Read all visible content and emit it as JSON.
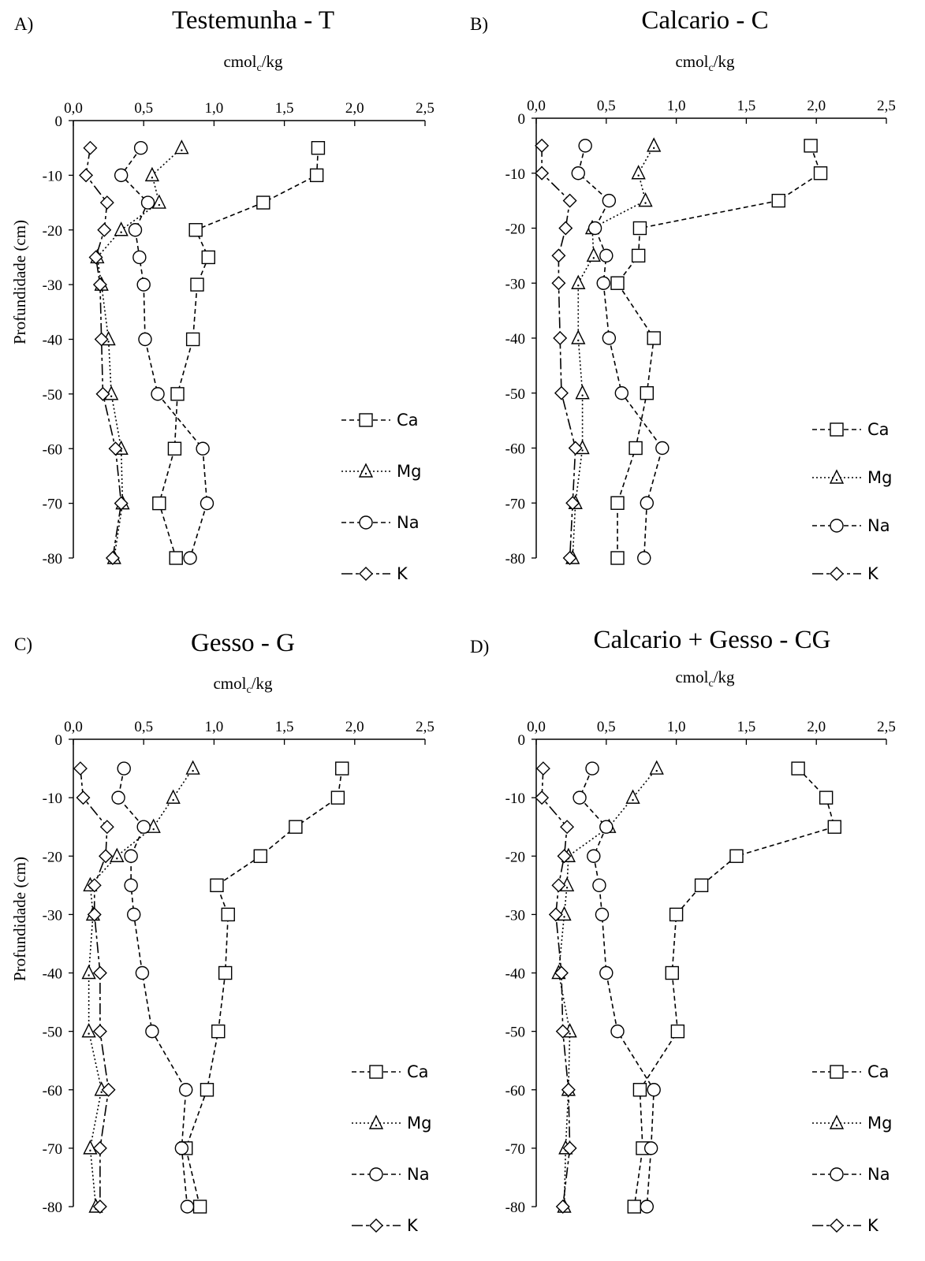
{
  "chart_data": [
    {
      "type": "line",
      "panel_label": "A)",
      "title": "Testemunha - T",
      "xlabel": {
        "base": "cmol",
        "sub": "c",
        "rest": "/kg"
      },
      "ylabel": "Profundidade (cm)",
      "xlim": [
        0,
        2.5
      ],
      "ylim": [
        -80,
        0
      ],
      "x_ticks": [
        "0,0",
        "0,5",
        "1,0",
        "1,5",
        "2,0",
        "2,5"
      ],
      "y_ticks": [
        "0",
        "-10",
        "-20",
        "-30",
        "-40",
        "-50",
        "-60",
        "-70",
        "-80"
      ],
      "legend_position": "right",
      "depth": [
        -5,
        -10,
        -15,
        -20,
        -25,
        -30,
        -40,
        -50,
        -60,
        -70,
        -80
      ],
      "series": [
        {
          "name": "Ca",
          "marker": "square",
          "dash": "dashed",
          "values": [
            1.74,
            1.73,
            1.35,
            0.87,
            0.96,
            0.88,
            0.85,
            0.74,
            0.72,
            0.61,
            0.73
          ]
        },
        {
          "name": "Mg",
          "marker": "triangle",
          "dash": "dotted",
          "values": [
            0.77,
            0.56,
            0.61,
            0.34,
            0.17,
            0.2,
            0.25,
            0.27,
            0.34,
            0.35,
            0.29
          ]
        },
        {
          "name": "Na",
          "marker": "circle",
          "dash": "dashed",
          "values": [
            0.48,
            0.34,
            0.53,
            0.44,
            0.47,
            0.5,
            0.51,
            0.6,
            0.92,
            0.95,
            0.83
          ]
        },
        {
          "name": "K",
          "marker": "diamond",
          "dash": "longdash",
          "values": [
            0.12,
            0.09,
            0.24,
            0.22,
            0.16,
            0.19,
            0.2,
            0.21,
            0.3,
            0.34,
            0.28
          ]
        }
      ]
    },
    {
      "type": "line",
      "panel_label": "B)",
      "title": "Calcario - C",
      "xlabel": {
        "base": "cmol",
        "sub": "c",
        "rest": "/kg"
      },
      "ylabel": "",
      "xlim": [
        0,
        2.5
      ],
      "ylim": [
        -80,
        0
      ],
      "x_ticks": [
        "0,0",
        "0,5",
        "1,0",
        "1,5",
        "2,0",
        "2,5"
      ],
      "y_ticks": [
        "0",
        "-10",
        "-20",
        "-30",
        "-40",
        "-50",
        "-60",
        "-70",
        "-80"
      ],
      "legend_position": "right",
      "depth": [
        -5,
        -10,
        -15,
        -20,
        -25,
        -30,
        -40,
        -50,
        -60,
        -70,
        -80
      ],
      "series": [
        {
          "name": "Ca",
          "marker": "square",
          "dash": "dashed",
          "values": [
            1.96,
            2.03,
            1.73,
            0.74,
            0.73,
            0.58,
            0.84,
            0.79,
            0.71,
            0.58,
            0.58
          ]
        },
        {
          "name": "Mg",
          "marker": "triangle",
          "dash": "dotted",
          "values": [
            0.84,
            0.73,
            0.78,
            0.4,
            0.41,
            0.3,
            0.3,
            0.33,
            0.33,
            0.28,
            0.26
          ]
        },
        {
          "name": "Na",
          "marker": "circle",
          "dash": "dashed",
          "values": [
            0.35,
            0.3,
            0.52,
            0.42,
            0.5,
            0.48,
            0.52,
            0.61,
            0.9,
            0.79,
            0.77
          ]
        },
        {
          "name": "K",
          "marker": "diamond",
          "dash": "longdash",
          "values": [
            0.04,
            0.04,
            0.24,
            0.21,
            0.16,
            0.16,
            0.17,
            0.18,
            0.28,
            0.26,
            0.24
          ]
        }
      ]
    },
    {
      "type": "line",
      "panel_label": "C)",
      "title": "Gesso - G",
      "xlabel": {
        "base": "cmol",
        "sub": "c",
        "rest": "/kg"
      },
      "ylabel": "Profundidade (cm)",
      "xlim": [
        0,
        2.5
      ],
      "ylim": [
        -80,
        0
      ],
      "x_ticks": [
        "0,0",
        "0,5",
        "1,0",
        "1,5",
        "2,0",
        "2,5"
      ],
      "y_ticks": [
        "0",
        "-10",
        "-20",
        "-30",
        "-40",
        "-50",
        "-60",
        "-70",
        "-80"
      ],
      "legend_position": "right",
      "depth": [
        -5,
        -10,
        -15,
        -20,
        -25,
        -30,
        -40,
        -50,
        -60,
        -70,
        -80
      ],
      "series": [
        {
          "name": "Ca",
          "marker": "square",
          "dash": "dashed",
          "values": [
            1.91,
            1.88,
            1.58,
            1.33,
            1.02,
            1.1,
            1.08,
            1.03,
            0.95,
            0.8,
            0.9
          ]
        },
        {
          "name": "Mg",
          "marker": "triangle",
          "dash": "dotted",
          "values": [
            0.85,
            0.71,
            0.57,
            0.31,
            0.12,
            0.14,
            0.11,
            0.11,
            0.2,
            0.12,
            0.16
          ]
        },
        {
          "name": "Na",
          "marker": "circle",
          "dash": "dashed",
          "values": [
            0.36,
            0.32,
            0.5,
            0.41,
            0.41,
            0.43,
            0.49,
            0.56,
            0.8,
            0.77,
            0.81
          ]
        },
        {
          "name": "K",
          "marker": "diamond",
          "dash": "longdash",
          "values": [
            0.05,
            0.07,
            0.24,
            0.23,
            0.15,
            0.15,
            0.19,
            0.19,
            0.25,
            0.19,
            0.19
          ]
        }
      ]
    },
    {
      "type": "line",
      "panel_label": "D)",
      "title": "Calcario + Gesso - CG",
      "xlabel": {
        "base": "cmol",
        "sub": "c",
        "rest": "/kg"
      },
      "ylabel": "",
      "xlim": [
        0,
        2.5
      ],
      "ylim": [
        -80,
        0
      ],
      "x_ticks": [
        "0,0",
        "0,5",
        "1,0",
        "1,5",
        "2,0",
        "2,5"
      ],
      "y_ticks": [
        "0",
        "-10",
        "-20",
        "-30",
        "-40",
        "-50",
        "-60",
        "-70",
        "-80"
      ],
      "legend_position": "right",
      "depth": [
        -5,
        -10,
        -15,
        -20,
        -25,
        -30,
        -40,
        -50,
        -60,
        -70,
        -80
      ],
      "series": [
        {
          "name": "Ca",
          "marker": "square",
          "dash": "dashed",
          "values": [
            1.87,
            2.07,
            2.13,
            1.43,
            1.18,
            1.0,
            0.97,
            1.01,
            0.74,
            0.76,
            0.7
          ]
        },
        {
          "name": "Mg",
          "marker": "triangle",
          "dash": "dotted",
          "values": [
            0.86,
            0.69,
            0.52,
            0.23,
            0.22,
            0.2,
            0.16,
            0.24,
            0.23,
            0.21,
            0.2
          ]
        },
        {
          "name": "Na",
          "marker": "circle",
          "dash": "dashed",
          "values": [
            0.4,
            0.31,
            0.5,
            0.41,
            0.45,
            0.47,
            0.5,
            0.58,
            0.84,
            0.82,
            0.79
          ]
        },
        {
          "name": "K",
          "marker": "diamond",
          "dash": "longdash",
          "values": [
            0.05,
            0.04,
            0.22,
            0.2,
            0.16,
            0.14,
            0.18,
            0.19,
            0.23,
            0.24,
            0.19
          ]
        }
      ]
    }
  ]
}
